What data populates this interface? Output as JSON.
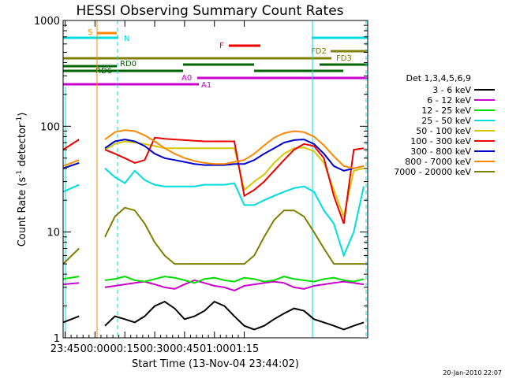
{
  "chart_data": {
    "type": "line",
    "title": "HESSI Observing Summary Count Rates",
    "xlabel": "Start Time (13-Nov-04 23:44:02)",
    "ylabel_main": "Count Rate (s",
    "ylabel_sup1": "-1",
    "ylabel_mid": " detector",
    "ylabel_sup2": "-1",
    "ylabel_end": ")",
    "yscale": "log",
    "ylim": [
      1,
      1000
    ],
    "xlim_minutes": [
      -16,
      137
    ],
    "xticks": [
      {
        "label": "23:45",
        "minutes": -15
      },
      {
        "label": "00:00",
        "minutes": 0
      },
      {
        "label": "00:15",
        "minutes": 15
      },
      {
        "label": "00:30",
        "minutes": 30
      },
      {
        "label": "00:45",
        "minutes": 45
      },
      {
        "label": "01:00",
        "minutes": 60
      },
      {
        "label": "01:15",
        "minutes": 75
      }
    ],
    "yticks": [
      {
        "label": "1",
        "value": 1
      },
      {
        "label": "10",
        "value": 10
      },
      {
        "label": "100",
        "value": 100
      },
      {
        "label": "1000",
        "value": 1000
      }
    ],
    "legend_title": "Det 1,3,4,5,6,9",
    "legend_placement": "right",
    "series": [
      {
        "name": "3 - 6 keV",
        "color": "#000000",
        "x": [
          -16,
          -8,
          -6,
          0,
          5,
          10,
          15,
          20,
          25,
          30,
          35,
          40,
          45,
          50,
          55,
          60,
          65,
          70,
          75,
          80,
          85,
          90,
          95,
          100,
          105,
          110,
          115,
          120,
          125,
          130,
          135
        ],
        "y": [
          1.4,
          1.6,
          null,
          null,
          1.3,
          1.6,
          1.5,
          1.4,
          1.6,
          2.0,
          2.2,
          1.9,
          1.5,
          1.6,
          1.8,
          2.2,
          2.0,
          1.6,
          1.3,
          1.2,
          1.3,
          1.5,
          1.7,
          1.9,
          1.8,
          1.5,
          1.4,
          1.3,
          1.2,
          1.3,
          1.4
        ]
      },
      {
        "name": "6 - 12 keV",
        "color": "#cc00cc",
        "x": [
          -16,
          -8,
          -6,
          0,
          5,
          10,
          15,
          20,
          25,
          30,
          35,
          40,
          45,
          50,
          55,
          60,
          65,
          70,
          75,
          80,
          85,
          90,
          95,
          100,
          105,
          110,
          115,
          120,
          125,
          130,
          135
        ],
        "y": [
          3.2,
          3.3,
          null,
          null,
          3.0,
          3.1,
          3.2,
          3.3,
          3.4,
          3.2,
          3.0,
          2.9,
          3.2,
          3.5,
          3.3,
          3.1,
          3.0,
          2.8,
          3.1,
          3.2,
          3.3,
          3.4,
          3.3,
          3.0,
          2.9,
          3.1,
          3.2,
          3.3,
          3.4,
          3.3,
          3.2
        ]
      },
      {
        "name": "12 - 25 keV",
        "color": "#00dd00",
        "x": [
          -16,
          -8,
          -6,
          0,
          5,
          10,
          15,
          20,
          25,
          30,
          35,
          40,
          45,
          50,
          55,
          60,
          65,
          70,
          75,
          80,
          85,
          90,
          95,
          100,
          105,
          110,
          115,
          120,
          125,
          130,
          135
        ],
        "y": [
          3.6,
          3.8,
          null,
          null,
          3.5,
          3.6,
          3.8,
          3.5,
          3.4,
          3.6,
          3.8,
          3.7,
          3.5,
          3.3,
          3.6,
          3.7,
          3.5,
          3.4,
          3.7,
          3.6,
          3.4,
          3.5,
          3.8,
          3.6,
          3.5,
          3.4,
          3.6,
          3.7,
          3.5,
          3.4,
          3.6
        ]
      },
      {
        "name": "25 - 50 keV",
        "color": "#00dddd",
        "x": [
          -16,
          -8,
          -6,
          0,
          5,
          10,
          15,
          20,
          25,
          30,
          35,
          40,
          45,
          50,
          55,
          60,
          65,
          70,
          75,
          80,
          85,
          90,
          95,
          100,
          105,
          110,
          115,
          120,
          125,
          130,
          135
        ],
        "y": [
          24,
          28,
          null,
          null,
          40,
          33,
          29,
          38,
          31,
          28,
          27,
          27,
          27,
          27,
          28,
          28,
          28,
          29,
          18,
          18,
          20,
          22,
          24,
          26,
          27,
          24,
          16,
          12,
          6,
          10,
          27
        ]
      },
      {
        "name": "50 - 100 keV",
        "color": "#d6c800",
        "x": [
          -16,
          -8,
          -6,
          0,
          5,
          10,
          15,
          20,
          25,
          30,
          35,
          40,
          45,
          50,
          55,
          60,
          65,
          70,
          75,
          80,
          85,
          90,
          95,
          100,
          105,
          110,
          115,
          120,
          125,
          130,
          135
        ],
        "y": [
          40,
          45,
          null,
          null,
          60,
          68,
          72,
          70,
          68,
          65,
          62,
          62,
          62,
          62,
          62,
          62,
          62,
          62,
          25,
          30,
          35,
          45,
          55,
          62,
          63,
          58,
          45,
          25,
          14,
          38,
          40
        ]
      },
      {
        "name": "100 - 300 keV",
        "color": "#ee0000",
        "x": [
          -16,
          -8,
          -6,
          0,
          5,
          10,
          15,
          20,
          25,
          30,
          35,
          40,
          45,
          50,
          55,
          60,
          65,
          70,
          75,
          80,
          85,
          90,
          95,
          100,
          105,
          110,
          115,
          120,
          125,
          130,
          135
        ],
        "y": [
          60,
          75,
          null,
          null,
          60,
          55,
          50,
          45,
          48,
          78,
          76,
          75,
          74,
          73,
          72,
          72,
          72,
          72,
          22,
          25,
          30,
          38,
          48,
          60,
          68,
          65,
          50,
          22,
          12,
          60,
          62
        ]
      },
      {
        "name": "300 - 800 keV",
        "color": "#0000cc",
        "x": [
          -16,
          -8,
          -6,
          0,
          5,
          10,
          15,
          20,
          25,
          30,
          35,
          40,
          45,
          50,
          55,
          60,
          65,
          70,
          75,
          80,
          85,
          90,
          95,
          100,
          105,
          110,
          115,
          120,
          125,
          130,
          135
        ],
        "y": [
          40,
          45,
          null,
          null,
          62,
          72,
          75,
          72,
          65,
          55,
          50,
          48,
          46,
          44,
          43,
          43,
          43,
          44,
          44,
          48,
          55,
          62,
          70,
          74,
          75,
          68,
          55,
          42,
          38,
          40,
          42
        ]
      },
      {
        "name": "800 - 7000 keV",
        "color": "#ff8800",
        "x": [
          -16,
          -8,
          -6,
          0,
          5,
          10,
          15,
          20,
          25,
          30,
          35,
          40,
          45,
          50,
          55,
          60,
          65,
          70,
          75,
          80,
          85,
          90,
          95,
          100,
          105,
          110,
          115,
          120,
          125,
          130,
          135
        ],
        "y": [
          42,
          48,
          null,
          null,
          75,
          88,
          92,
          90,
          82,
          72,
          62,
          55,
          50,
          47,
          45,
          44,
          44,
          46,
          48,
          55,
          66,
          78,
          86,
          90,
          88,
          80,
          66,
          52,
          42,
          40,
          42
        ]
      },
      {
        "name": "7000 - 20000 keV",
        "color": "#808000",
        "x": [
          -16,
          -8,
          -6,
          0,
          5,
          10,
          15,
          20,
          25,
          30,
          35,
          40,
          45,
          50,
          55,
          60,
          65,
          70,
          75,
          80,
          85,
          90,
          95,
          100,
          105,
          110,
          115,
          120,
          125,
          130,
          135
        ],
        "y": [
          5,
          7,
          null,
          null,
          9,
          14,
          17,
          16,
          12,
          8,
          6,
          5,
          5,
          5,
          5,
          5,
          5,
          5,
          5,
          6,
          9,
          13,
          16,
          16,
          14,
          10,
          7,
          5,
          5,
          5,
          5
        ]
      }
    ],
    "attenuator_labels": [
      {
        "label": "S",
        "color": "#ff8800"
      },
      {
        "label": "N",
        "color": "#00dddd"
      },
      {
        "label": "F",
        "color": "#ee0000"
      },
      {
        "label": "FD2",
        "color": "#808000"
      },
      {
        "label": "FD3",
        "color": "#808000"
      },
      {
        "label": "RD0",
        "color": "#006400"
      },
      {
        "label": "RD6",
        "color": "#006400"
      },
      {
        "label": "A0",
        "color": "#cc00cc"
      },
      {
        "label": "A1",
        "color": "#cc00cc"
      }
    ],
    "grid": false
  },
  "footer": {
    "timestamp": "20-Jan-2010 22:07"
  }
}
